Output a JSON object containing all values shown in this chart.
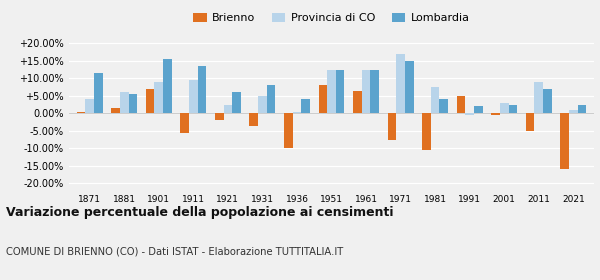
{
  "years": [
    1871,
    1881,
    1901,
    1911,
    1921,
    1931,
    1936,
    1951,
    1961,
    1971,
    1981,
    1991,
    2001,
    2011,
    2021
  ],
  "brienno": [
    0.5,
    1.5,
    7.0,
    -5.5,
    -2.0,
    -3.5,
    -10.0,
    8.0,
    6.5,
    -7.5,
    -10.5,
    5.0,
    -0.5,
    -5.0,
    -16.0
  ],
  "provincia_co": [
    4.0,
    6.0,
    9.0,
    9.5,
    2.5,
    5.0,
    0.5,
    12.5,
    12.5,
    17.0,
    7.5,
    -0.5,
    3.0,
    9.0,
    1.0
  ],
  "lombardia": [
    11.5,
    5.5,
    15.5,
    13.5,
    6.0,
    8.0,
    4.0,
    12.5,
    12.5,
    15.0,
    4.0,
    2.0,
    2.5,
    7.0,
    2.5
  ],
  "color_brienno": "#e07020",
  "color_provincia": "#b8d4ea",
  "color_lombardia": "#5ba3cd",
  "title": "Variazione percentuale della popolazione ai censimenti",
  "subtitle": "COMUNE DI BRIENNO (CO) - Dati ISTAT - Elaborazione TUTTITALIA.IT",
  "ylim": [
    -22,
    22
  ],
  "yticks": [
    -20,
    -15,
    -10,
    -5,
    0,
    5,
    10,
    15,
    20
  ],
  "background": "#f0f0f0",
  "legend_labels": [
    "Brienno",
    "Provincia di CO",
    "Lombardia"
  ],
  "bar_width": 0.25
}
